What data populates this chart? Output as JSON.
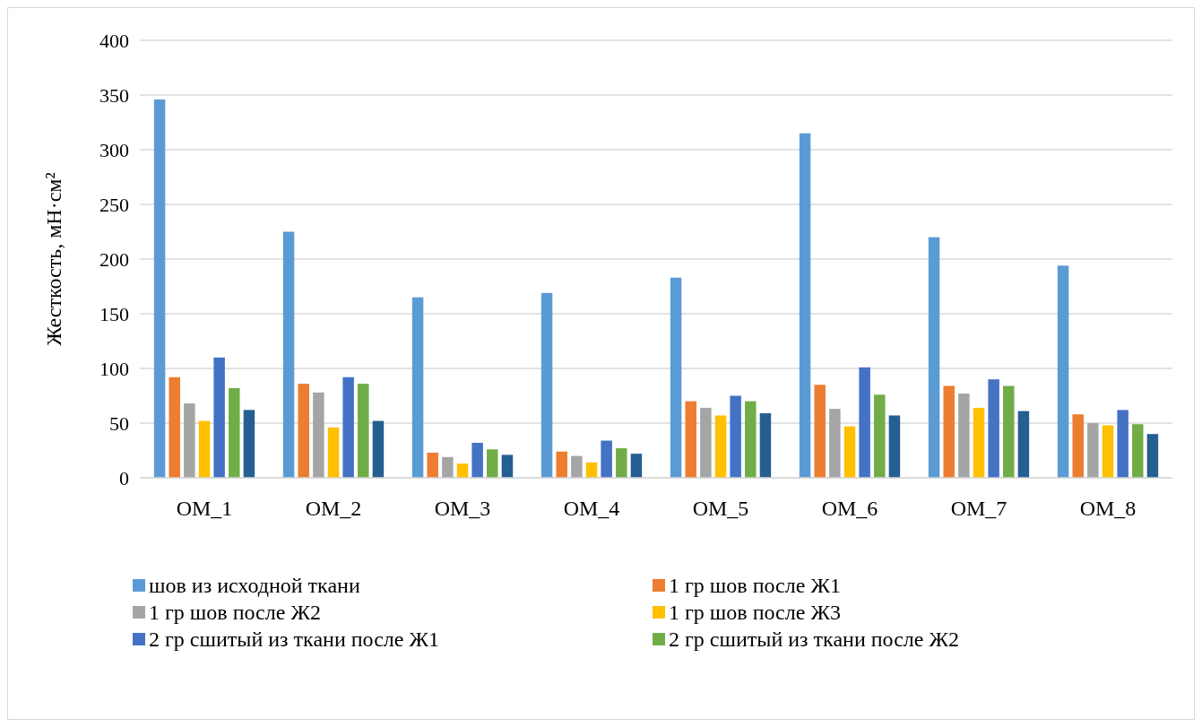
{
  "chart_data": {
    "type": "bar",
    "ylabel": "Жесткость, мН·см²",
    "categories": [
      "ОМ_1",
      "ОМ_2",
      "ОМ_3",
      "ОМ_4",
      "ОМ_5",
      "ОМ_6",
      "ОМ_7",
      "ОМ_8"
    ],
    "series": [
      {
        "name": "шов из исходной ткани",
        "color": "#5b9bd5",
        "values": [
          346,
          225,
          165,
          169,
          183,
          315,
          220,
          194
        ]
      },
      {
        "name": "1 гр шов после Ж1",
        "color": "#ed7d31",
        "values": [
          92,
          86,
          23,
          24,
          70,
          85,
          84,
          58
        ]
      },
      {
        "name": "1 гр шов после Ж2",
        "color": "#a5a5a5",
        "values": [
          68,
          78,
          19,
          20,
          64,
          63,
          77,
          50
        ]
      },
      {
        "name": "1 гр шов после Ж3",
        "color": "#ffc000",
        "values": [
          52,
          46,
          13,
          14,
          57,
          47,
          64,
          48
        ]
      },
      {
        "name": "2 гр сшитый из ткани после Ж1",
        "color": "#4472c4",
        "values": [
          110,
          92,
          32,
          34,
          75,
          101,
          90,
          62
        ]
      },
      {
        "name": "2 гр сшитый из ткани после Ж2",
        "color": "#70ad47",
        "values": [
          82,
          86,
          26,
          27,
          70,
          76,
          84,
          49
        ]
      },
      {
        "color": "#255e91",
        "values": [
          62,
          52,
          21,
          22,
          59,
          57,
          61,
          40
        ]
      }
    ],
    "ylim": [
      0,
      400
    ],
    "yticks": [
      0,
      50,
      100,
      150,
      200,
      250,
      300,
      350,
      400
    ],
    "grid": "y",
    "legend": "bottom"
  }
}
